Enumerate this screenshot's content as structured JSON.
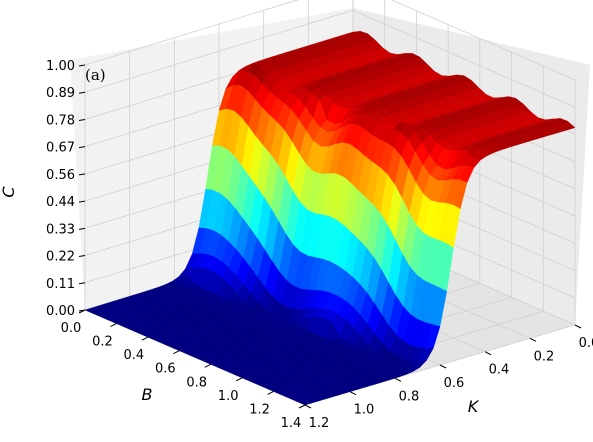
{
  "panel_label": "(a)",
  "chart_data": {
    "type": "surface3d",
    "zlabel": "C",
    "xlabel": "B",
    "ylabel": "K",
    "xlim": [
      0.0,
      1.4
    ],
    "ylim": [
      0.0,
      1.2
    ],
    "zlim": [
      0.0,
      1.0
    ],
    "colormap": "jet",
    "z_ticks": [
      "0.00",
      "0.11",
      "0.22",
      "0.33",
      "0.44",
      "0.56",
      "0.67",
      "0.78",
      "0.89",
      "1.00"
    ],
    "x_ticks": [
      "0.0",
      "0.2",
      "0.4",
      "0.6",
      "0.8",
      "1.0",
      "1.2",
      "1.4"
    ],
    "y_ticks": [
      "0.0",
      "0.2",
      "0.4",
      "0.6",
      "0.8",
      "1.0",
      "1.2"
    ],
    "surface_description_values": {
      "low_plateau": 0.0,
      "high_plateau": 0.8,
      "transition_K_at_B0": 0.65,
      "transition_K_at_B1_4": 0.55
    }
  }
}
